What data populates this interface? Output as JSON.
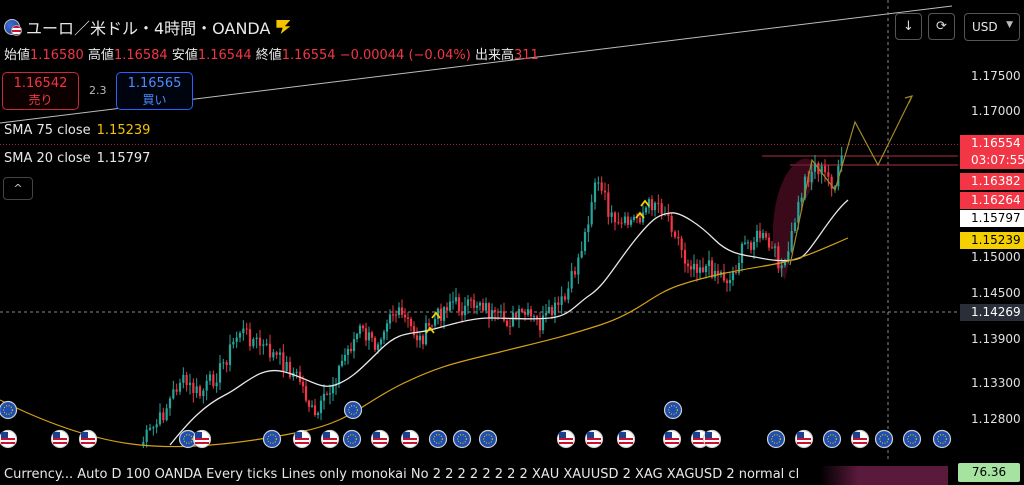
{
  "header": {
    "title": "ユーロ／米ドル・4時間・OANDA",
    "ohlc": {
      "open_label": "始値",
      "open": "1.16580",
      "high_label": "高値",
      "high": "1.16584",
      "low_label": "安値",
      "low": "1.16544",
      "close_label": "終値",
      "close": "1.16554",
      "change": "−0.00044 (−0.04%)",
      "volume_label": "出来高",
      "volume": "311"
    }
  },
  "trade": {
    "sell_price": "1.16542",
    "sell_label": "売り",
    "spread": "2.3",
    "buy_price": "1.16565",
    "buy_label": "買い"
  },
  "indicators": [
    {
      "label": "SMA 75 close",
      "value": "1.15239",
      "color": "#f5c400"
    },
    {
      "label": "SMA 20 close",
      "value": "1.15797",
      "color": "#ffffff"
    }
  ],
  "toolbar": {
    "collapse_icon": "^",
    "download_icon": "↓",
    "replay_icon": "⟳",
    "currency": "USD"
  },
  "price_axis": [
    "1.17500",
    "1.17000",
    "1.15000",
    "1.14500",
    "1.13900",
    "1.13300",
    "1.12800"
  ],
  "tags": {
    "last_price": "1.16554",
    "countdown": "03:07:55",
    "level_a": "1.16382",
    "level_b": "1.16264",
    "sma20": "1.15797",
    "sma75": "1.15239",
    "crosshair": "1.14269"
  },
  "colors": {
    "up": "#26a69a",
    "down": "#f23645",
    "sma20": "#e8e8e8",
    "sma75": "#d4a017",
    "tag_red": "#f23645",
    "tag_yellow": "#f5d000"
  },
  "footer": {
    "text": "Currency... Auto D 100 OANDA Every ticks Lines only monokai No 2 2 2 2 2 2 2 2 XAU XAUUSD 2 XAG XAGUSD 2 normal cl",
    "osc_value": "76.36"
  },
  "chart_data": {
    "type": "candlestick",
    "symbol": "EUR/USD",
    "timeframe": "4H",
    "ylim": [
      1.1236,
      1.1805
    ],
    "series": [
      {
        "name": "SMA 20 close",
        "last": 1.15797
      },
      {
        "name": "SMA 75 close",
        "last": 1.15239
      }
    ],
    "last": 1.16554
  }
}
